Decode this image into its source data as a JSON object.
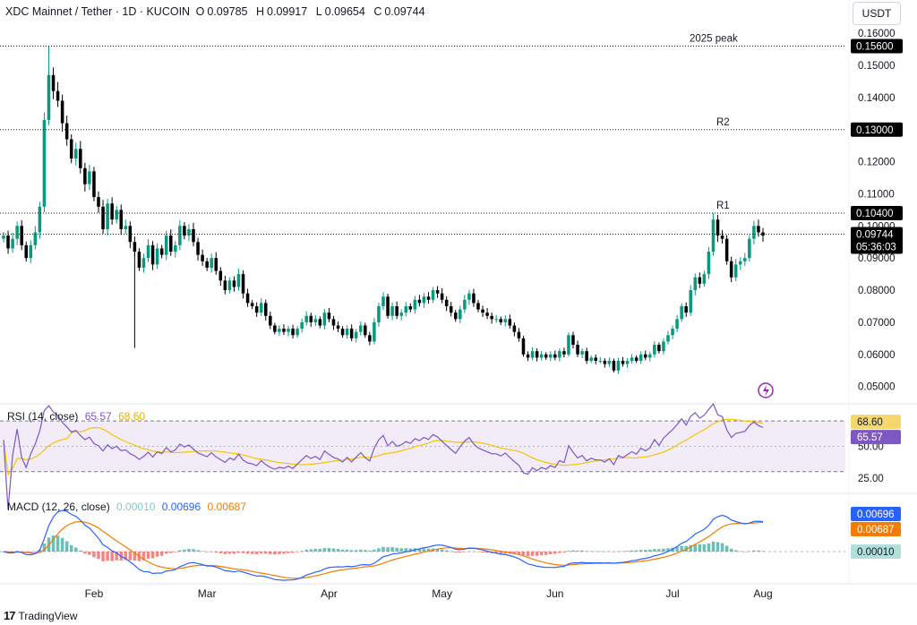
{
  "header": {
    "symbol": "XDC Mainnet / Tether · 1D · KUCOIN",
    "o_label": "O",
    "o": "0.09785",
    "h_label": "H",
    "h": "0.09917",
    "l_label": "L",
    "l": "0.09654",
    "c_label": "C",
    "c": "0.09744"
  },
  "currency_button": "USDT",
  "footer_brand": "TradingView",
  "colors": {
    "up": "#089981",
    "down": "#000000",
    "rsi": "#7e57c2",
    "rsi_ma": "#f5c400",
    "macd": "#2962ff",
    "signal": "#f57c00",
    "hist_up": "#26a69a",
    "hist_down": "#ef5350"
  },
  "chart_data": [
    {
      "type": "candlestick",
      "x_ticks": [
        "Feb",
        "Mar",
        "Apr",
        "May",
        "Jun",
        "Jul",
        "Aug"
      ],
      "y_ticks": [
        "0.16000",
        "0.15000",
        "0.14000",
        "0.13000",
        "0.12000",
        "0.11000",
        "0.10000",
        "0.09000",
        "0.08000",
        "0.07000",
        "0.06000",
        "0.05000"
      ],
      "ylim": [
        0.046,
        0.162
      ],
      "levels": [
        {
          "label": "2025 peak",
          "value": 0.156,
          "tag": "0.15600"
        },
        {
          "label": "R2",
          "value": 0.13,
          "tag": "0.13000"
        },
        {
          "label": "R1",
          "value": 0.104,
          "tag": "0.10400"
        }
      ],
      "last_price": {
        "value": 0.09744,
        "tag": "0.09744",
        "countdown": "05:36:03"
      },
      "closes": [
        0.097,
        0.093,
        0.096,
        0.1,
        0.094,
        0.09,
        0.094,
        0.098,
        0.106,
        0.133,
        0.147,
        0.142,
        0.139,
        0.132,
        0.127,
        0.121,
        0.124,
        0.118,
        0.113,
        0.117,
        0.109,
        0.106,
        0.099,
        0.107,
        0.102,
        0.105,
        0.099,
        0.1,
        0.095,
        0.092,
        0.087,
        0.09,
        0.094,
        0.088,
        0.093,
        0.091,
        0.097,
        0.092,
        0.094,
        0.1,
        0.097,
        0.099,
        0.095,
        0.091,
        0.089,
        0.087,
        0.09,
        0.086,
        0.083,
        0.08,
        0.083,
        0.081,
        0.085,
        0.079,
        0.076,
        0.075,
        0.073,
        0.076,
        0.072,
        0.069,
        0.067,
        0.068,
        0.067,
        0.068,
        0.066,
        0.068,
        0.07,
        0.072,
        0.07,
        0.071,
        0.069,
        0.073,
        0.071,
        0.069,
        0.068,
        0.066,
        0.068,
        0.065,
        0.067,
        0.069,
        0.066,
        0.064,
        0.07,
        0.075,
        0.078,
        0.072,
        0.075,
        0.072,
        0.073,
        0.075,
        0.074,
        0.077,
        0.076,
        0.078,
        0.077,
        0.08,
        0.079,
        0.077,
        0.075,
        0.073,
        0.071,
        0.074,
        0.077,
        0.079,
        0.076,
        0.074,
        0.073,
        0.072,
        0.071,
        0.071,
        0.07,
        0.071,
        0.069,
        0.067,
        0.065,
        0.06,
        0.059,
        0.061,
        0.059,
        0.06,
        0.059,
        0.06,
        0.059,
        0.061,
        0.06,
        0.066,
        0.063,
        0.06,
        0.061,
        0.058,
        0.059,
        0.058,
        0.058,
        0.057,
        0.058,
        0.055,
        0.058,
        0.057,
        0.058,
        0.059,
        0.058,
        0.06,
        0.059,
        0.06,
        0.063,
        0.061,
        0.064,
        0.066,
        0.068,
        0.071,
        0.075,
        0.073,
        0.08,
        0.084,
        0.082,
        0.085,
        0.092,
        0.102,
        0.097,
        0.096,
        0.089,
        0.084,
        0.088,
        0.089,
        0.09,
        0.096,
        0.1,
        0.098,
        0.097
      ]
    },
    {
      "type": "line",
      "title": "RSI (14, close)",
      "rsi_value": "65.57",
      "ma_value": "68.60",
      "y_ticks": [
        "50.00",
        "25.00"
      ],
      "bands": [
        70,
        30
      ],
      "ylim": [
        15,
        80
      ],
      "tags": [
        "68.60",
        "65.57"
      ]
    },
    {
      "type": "line",
      "title": "MACD (12, 26, close)",
      "hist_value": "0.00010",
      "macd_value": "0.00696",
      "signal_value": "0.00687",
      "tags": [
        "0.00696",
        "0.00687",
        "0.00010"
      ]
    }
  ]
}
